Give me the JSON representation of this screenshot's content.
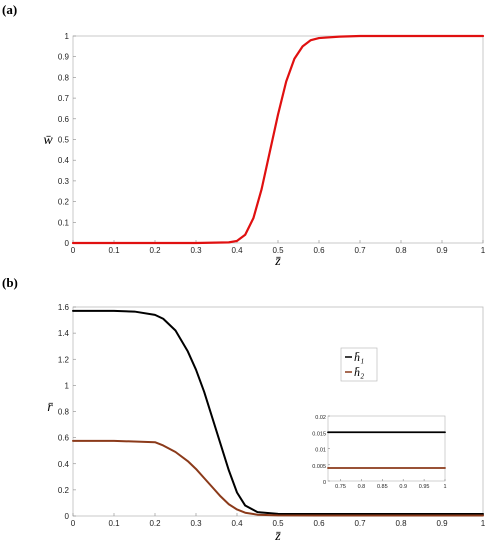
{
  "chart_data": [
    {
      "type": "line",
      "panel_label": "(a)",
      "xlabel": "z̄",
      "ylabel": "w̄",
      "xlim": [
        0,
        1
      ],
      "ylim": [
        0,
        1
      ],
      "xticks": [
        "0",
        "0.1",
        "0.2",
        "0.3",
        "0.4",
        "0.5",
        "0.6",
        "0.7",
        "0.8",
        "0.9",
        "1"
      ],
      "yticks": [
        "0",
        "0.1",
        "0.2",
        "0.3",
        "0.4",
        "0.5",
        "0.6",
        "0.7",
        "0.8",
        "0.9",
        "1"
      ],
      "grid": false,
      "series": [
        {
          "color": "#e01010",
          "x": [
            0,
            0.1,
            0.2,
            0.3,
            0.38,
            0.4,
            0.42,
            0.44,
            0.46,
            0.48,
            0.5,
            0.52,
            0.54,
            0.56,
            0.58,
            0.6,
            0.65,
            0.7,
            0.8,
            0.9,
            1
          ],
          "y": [
            0,
            0,
            0,
            0,
            0.003,
            0.01,
            0.04,
            0.12,
            0.26,
            0.44,
            0.62,
            0.78,
            0.89,
            0.95,
            0.98,
            0.99,
            0.997,
            1,
            1,
            1,
            1
          ]
        }
      ]
    },
    {
      "type": "line",
      "panel_label": "(b)",
      "xlabel": "z̄",
      "ylabel": "r̄",
      "xlim": [
        0,
        1
      ],
      "ylim": [
        0,
        1.6
      ],
      "xticks": [
        "0",
        "0.1",
        "0.2",
        "0.3",
        "0.4",
        "0.5",
        "0.6",
        "0.7",
        "0.8",
        "0.9",
        "1"
      ],
      "yticks": [
        "0",
        "0.2",
        "0.4",
        "0.6",
        "0.8",
        "1",
        "1.2",
        "1.4",
        "1.6"
      ],
      "grid": false,
      "legend_position": "right",
      "series": [
        {
          "name": "h̄₁",
          "color": "#000000",
          "x": [
            0,
            0.1,
            0.15,
            0.2,
            0.22,
            0.25,
            0.28,
            0.3,
            0.32,
            0.34,
            0.36,
            0.38,
            0.4,
            0.42,
            0.45,
            0.5,
            0.6,
            0.8,
            1
          ],
          "y": [
            1.57,
            1.57,
            1.565,
            1.54,
            1.51,
            1.42,
            1.26,
            1.12,
            0.95,
            0.75,
            0.55,
            0.35,
            0.18,
            0.08,
            0.03,
            0.016,
            0.015,
            0.015,
            0.015
          ]
        },
        {
          "name": "h̄₂",
          "color": "#8b3a1a",
          "x": [
            0,
            0.1,
            0.2,
            0.22,
            0.25,
            0.28,
            0.3,
            0.32,
            0.34,
            0.36,
            0.38,
            0.4,
            0.42,
            0.45,
            0.5,
            0.6,
            0.8,
            1
          ],
          "y": [
            0.575,
            0.575,
            0.565,
            0.54,
            0.49,
            0.42,
            0.36,
            0.29,
            0.22,
            0.15,
            0.09,
            0.05,
            0.025,
            0.01,
            0.005,
            0.004,
            0.004,
            0.004
          ]
        }
      ],
      "inset": {
        "xlim": [
          0.72,
          1
        ],
        "ylim": [
          0,
          0.02
        ],
        "xticks": [
          "0.75",
          "0.8",
          "0.85",
          "0.9",
          "0.95",
          "1"
        ],
        "yticks": [
          "0",
          "0.005",
          "0.01",
          "0.015",
          "0.02"
        ],
        "series": [
          {
            "color": "#000000",
            "x": [
              0.72,
              1
            ],
            "y": [
              0.015,
              0.015
            ]
          },
          {
            "color": "#8b3a1a",
            "x": [
              0.72,
              1
            ],
            "y": [
              0.004,
              0.004
            ]
          }
        ]
      }
    }
  ]
}
